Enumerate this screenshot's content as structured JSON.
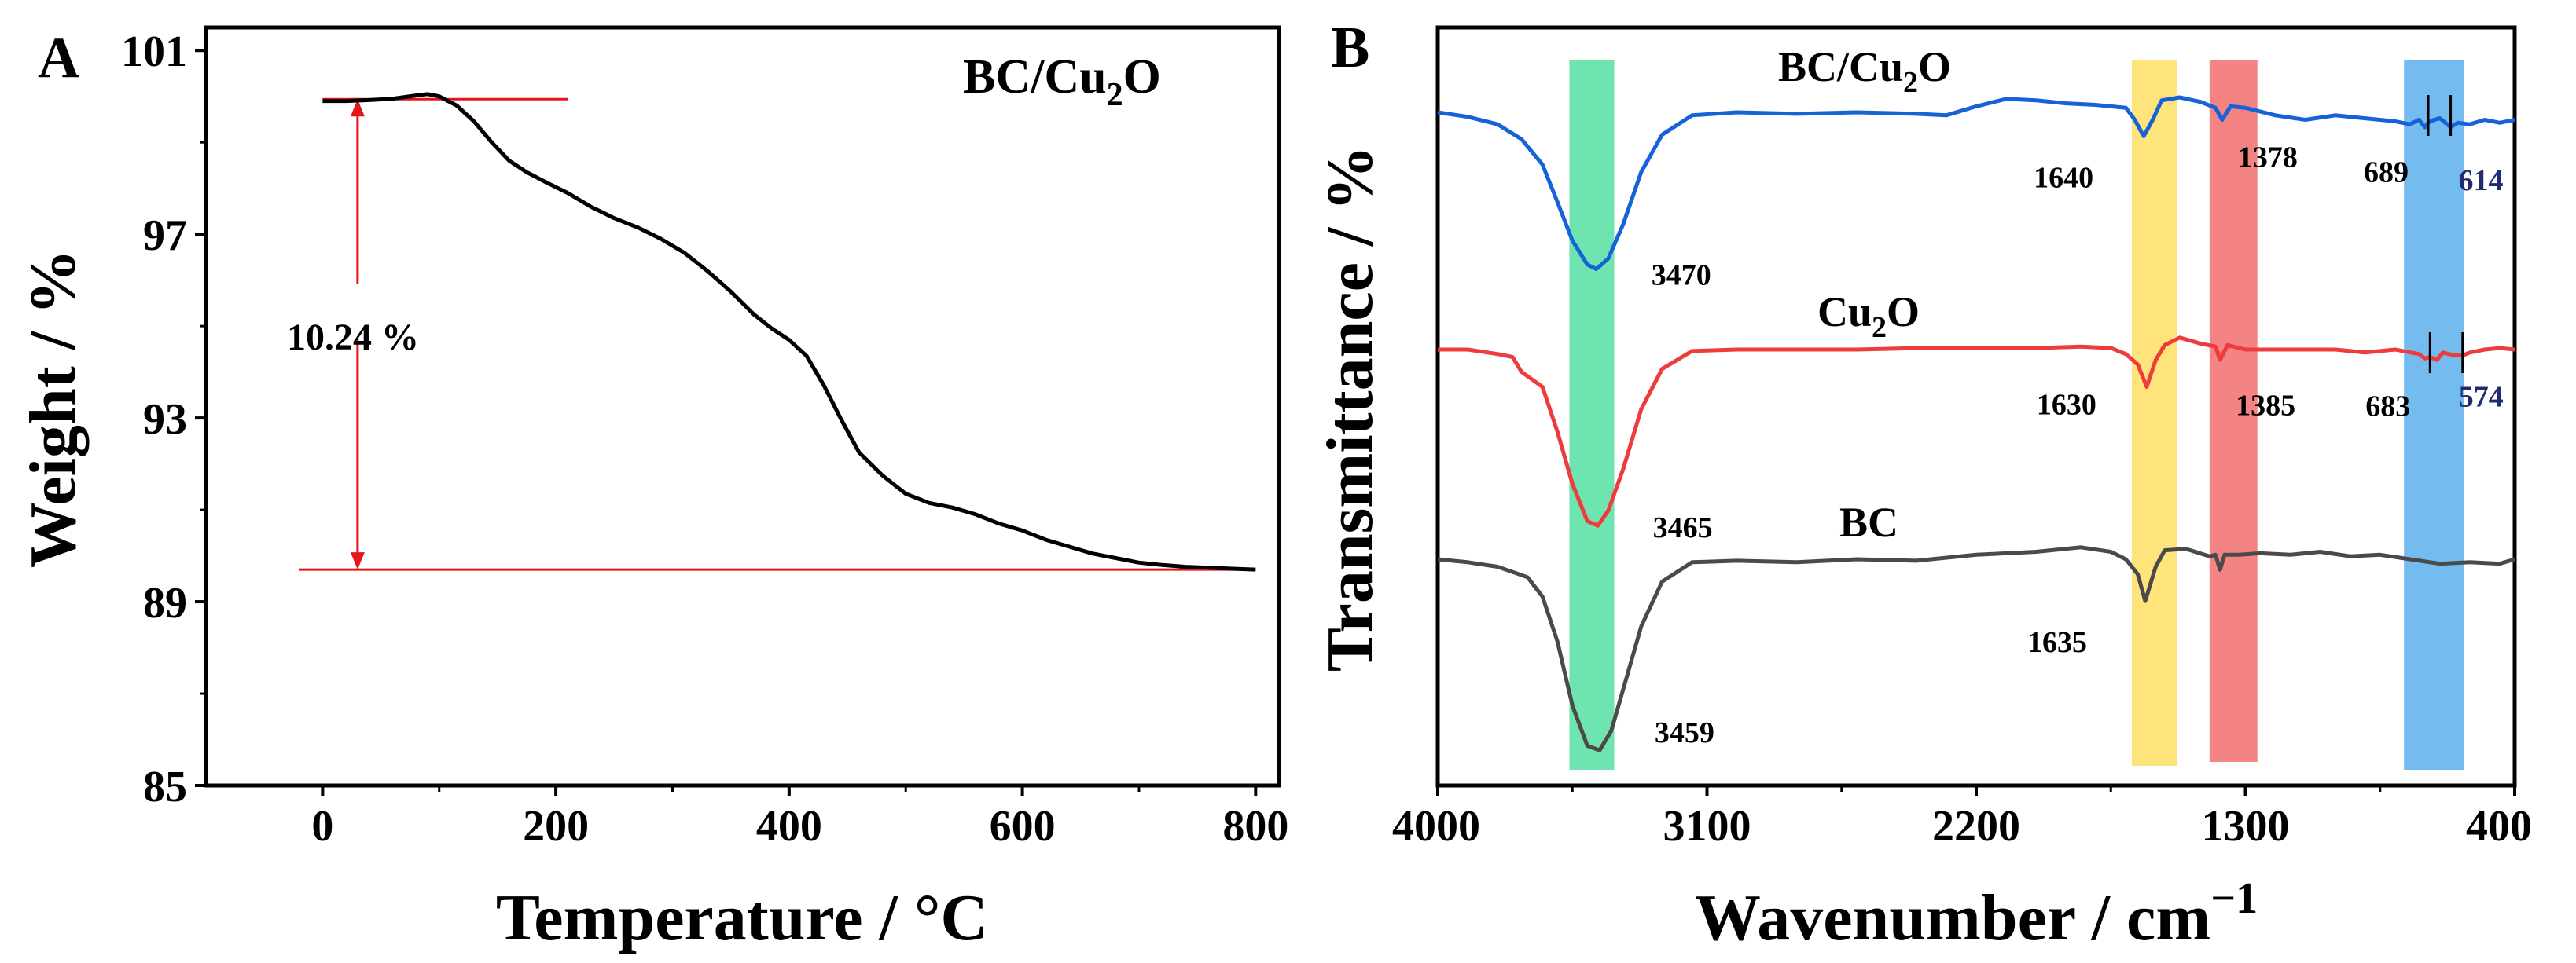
{
  "chart_data": [
    {
      "type": "line",
      "panel_label": "A",
      "title": "BC/Cu2O",
      "title_base": "BC/Cu",
      "title_sub": "2",
      "title_tail": "O",
      "xlabel": "Temperature / °C",
      "ylabel": "Weight / %",
      "xlim": [
        -100,
        820
      ],
      "ylim": [
        85,
        101.5
      ],
      "xticks": [
        0,
        200,
        400,
        600,
        800
      ],
      "yticks": [
        85,
        89,
        93,
        97,
        101
      ],
      "series": [
        {
          "name": "BC/Cu2O",
          "color": "#000000",
          "x": [
            0,
            20,
            40,
            60,
            80,
            90,
            100,
            115,
            130,
            145,
            160,
            175,
            190,
            210,
            230,
            250,
            270,
            290,
            310,
            330,
            350,
            370,
            385,
            400,
            415,
            430,
            445,
            460,
            480,
            500,
            520,
            540,
            560,
            580,
            600,
            620,
            640,
            660,
            680,
            700,
            720,
            740,
            760,
            780,
            800
          ],
          "y": [
            99.9,
            99.9,
            99.92,
            99.95,
            100.02,
            100.05,
            100.0,
            99.8,
            99.45,
            99.0,
            98.6,
            98.35,
            98.15,
            97.9,
            97.6,
            97.35,
            97.15,
            96.9,
            96.6,
            96.2,
            95.75,
            95.25,
            94.95,
            94.7,
            94.35,
            93.7,
            92.95,
            92.25,
            91.75,
            91.35,
            91.15,
            91.05,
            90.9,
            90.7,
            90.55,
            90.35,
            90.2,
            90.05,
            89.95,
            89.85,
            89.8,
            89.76,
            89.74,
            89.72,
            89.7
          ]
        }
      ],
      "annotation": {
        "text": "10.24 %",
        "from": 99.94,
        "to": 89.7,
        "x_line_start": 0,
        "x_line_end": 210,
        "x_bottom_start": -20,
        "x_bottom_end": 800,
        "x_arrow": 30
      }
    },
    {
      "type": "line",
      "panel_label": "B",
      "xlabel_base": "Wavenumber / cm",
      "xlabel_sup": "−1",
      "ylabel": "Transmittance / %",
      "xlim": [
        4000,
        400
      ],
      "xticks": [
        4000,
        3100,
        2200,
        1300,
        400
      ],
      "bands": [
        {
          "from": 3560,
          "to": 3410,
          "color": "#3ddc97"
        },
        {
          "from": 1680,
          "to": 1530,
          "color": "#ffd94f"
        },
        {
          "from": 1420,
          "to": 1260,
          "color": "#f05a5a"
        },
        {
          "from": 770,
          "to": 570,
          "color": "#46a4ea"
        }
      ],
      "series": [
        {
          "name": "BC/Cu2O",
          "label_base": "BC/Cu",
          "label_sub": "2",
          "label_tail": "O",
          "color": "#1563d6",
          "baseline": 0,
          "x": [
            4000,
            3900,
            3800,
            3720,
            3650,
            3600,
            3550,
            3500,
            3470,
            3430,
            3380,
            3320,
            3250,
            3150,
            3000,
            2800,
            2600,
            2400,
            2300,
            2200,
            2100,
            2000,
            1900,
            1800,
            1700,
            1670,
            1640,
            1610,
            1580,
            1520,
            1450,
            1400,
            1378,
            1350,
            1300,
            1200,
            1100,
            1000,
            900,
            800,
            750,
            720,
            700,
            689,
            670,
            650,
            614,
            590,
            550,
            500,
            450,
            400
          ],
          "y": [
            0,
            0.3,
            0.8,
            1.8,
            3.5,
            6.0,
            8.6,
            10.2,
            10.5,
            9.8,
            7.5,
            4.0,
            1.5,
            0.2,
            0.0,
            0.1,
            0.0,
            0.1,
            0.2,
            -0.4,
            -0.9,
            -0.8,
            -0.6,
            -0.5,
            -0.3,
            0.5,
            1.6,
            0.5,
            -0.8,
            -1.0,
            -0.7,
            -0.3,
            0.5,
            -0.4,
            -0.3,
            0.2,
            0.5,
            0.2,
            0.4,
            0.6,
            0.8,
            0.5,
            1.0,
            0.7,
            0.5,
            0.4,
            1.0,
            0.7,
            0.8,
            0.5,
            0.7,
            0.5
          ]
        },
        {
          "name": "Cu2O",
          "label_base": "Cu",
          "label_sub": "2",
          "label_tail": "O",
          "color": "#ee3b3b",
          "baseline": 1,
          "x": [
            4000,
            3900,
            3800,
            3750,
            3720,
            3650,
            3600,
            3550,
            3500,
            3465,
            3430,
            3380,
            3320,
            3250,
            3150,
            3000,
            2800,
            2600,
            2400,
            2200,
            2000,
            1850,
            1750,
            1700,
            1660,
            1630,
            1600,
            1570,
            1520,
            1450,
            1400,
            1385,
            1360,
            1300,
            1200,
            1100,
            1000,
            900,
            800,
            720,
            700,
            683,
            660,
            640,
            600,
            574,
            550,
            500,
            450,
            400
          ],
          "y": [
            0,
            0.0,
            0.3,
            0.5,
            1.5,
            2.5,
            5.5,
            9.0,
            11.5,
            11.8,
            10.8,
            8.0,
            4.0,
            1.3,
            0.1,
            0.0,
            0.0,
            0.0,
            -0.1,
            -0.1,
            -0.1,
            -0.2,
            -0.1,
            0.3,
            1.0,
            2.5,
            0.7,
            -0.3,
            -0.8,
            -0.4,
            -0.2,
            0.7,
            -0.3,
            0.0,
            0.0,
            0.0,
            0.0,
            0.2,
            0.0,
            0.3,
            0.6,
            0.5,
            0.7,
            0.2,
            0.4,
            0.4,
            0.2,
            0.0,
            -0.1,
            0.0
          ]
        },
        {
          "name": "BC",
          "label_base": "BC",
          "label_sub": "",
          "label_tail": "",
          "color": "#4a4a4a",
          "baseline": 2,
          "x": [
            4000,
            3900,
            3800,
            3700,
            3650,
            3600,
            3550,
            3500,
            3459,
            3420,
            3370,
            3320,
            3250,
            3150,
            3000,
            2800,
            2600,
            2400,
            2200,
            2000,
            1850,
            1750,
            1700,
            1660,
            1635,
            1600,
            1570,
            1500,
            1420,
            1400,
            1385,
            1370,
            1320,
            1250,
            1150,
            1050,
            950,
            850,
            750,
            650,
            550,
            450,
            400
          ],
          "y": [
            0,
            0.2,
            0.5,
            1.2,
            2.5,
            5.5,
            9.8,
            12.5,
            12.8,
            11.5,
            8.0,
            4.5,
            1.5,
            0.2,
            0.1,
            0.2,
            0.0,
            0.1,
            -0.3,
            -0.5,
            -0.8,
            -0.5,
            0.0,
            1.0,
            2.8,
            0.5,
            -0.6,
            -0.7,
            -0.2,
            -0.3,
            0.7,
            -0.3,
            -0.3,
            -0.4,
            -0.3,
            -0.5,
            -0.2,
            -0.3,
            0.0,
            0.3,
            0.2,
            0.3,
            0.0
          ]
        }
      ],
      "peak_labels": [
        {
          "text": "3470",
          "series": 0,
          "x": 3470
        },
        {
          "text": "1640",
          "series": 0,
          "x": 1640
        },
        {
          "text": "1378",
          "series": 0,
          "x": 1378
        },
        {
          "text": "689",
          "series": 0,
          "x": 689
        },
        {
          "text": "614",
          "series": 0,
          "x": 614
        },
        {
          "text": "3465",
          "series": 1,
          "x": 3465
        },
        {
          "text": "1630",
          "series": 1,
          "x": 1630
        },
        {
          "text": "1385",
          "series": 1,
          "x": 1385
        },
        {
          "text": "683",
          "series": 1,
          "x": 683
        },
        {
          "text": "574",
          "series": 1,
          "x": 574
        },
        {
          "text": "3459",
          "series": 2,
          "x": 3459
        },
        {
          "text": "1635",
          "series": 2,
          "x": 1635
        }
      ]
    }
  ]
}
